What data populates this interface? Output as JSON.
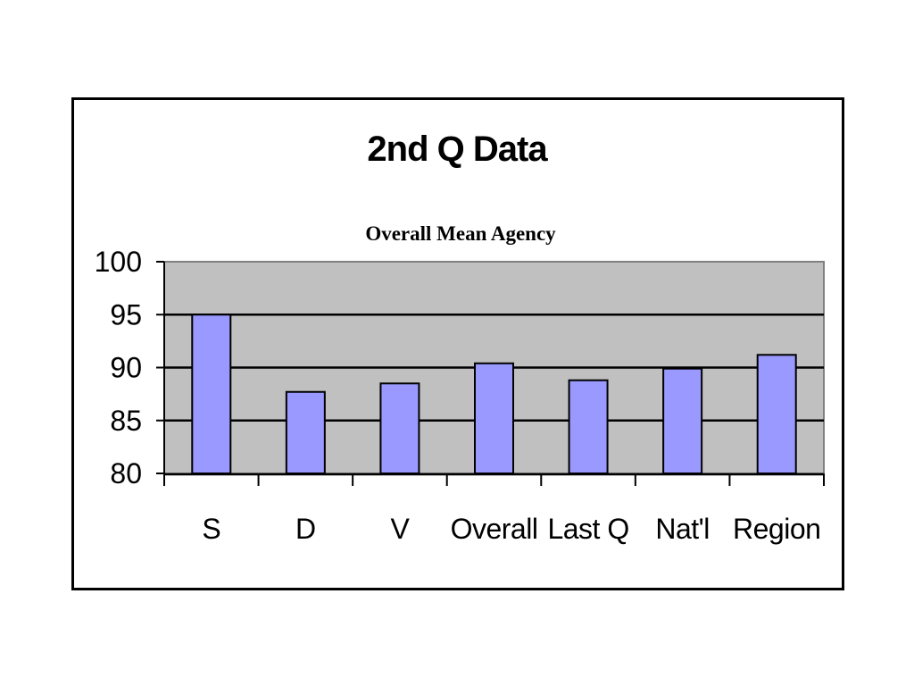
{
  "chart_data": {
    "type": "bar",
    "title": "2nd Q Data",
    "subtitle": "Overall Mean Agency",
    "xlabel": "",
    "ylabel": "",
    "categories": [
      "S",
      "D",
      "V",
      "Overall",
      "Last Q",
      "Nat'l",
      "Region"
    ],
    "values": [
      95,
      87.7,
      88.5,
      90.4,
      88.8,
      89.9,
      91.2
    ],
    "ylim": [
      80,
      100
    ],
    "yticks": [
      80,
      85,
      90,
      95,
      100
    ],
    "grid": true,
    "legend": "none",
    "colors": {
      "bar_fill": "#9999ff",
      "bar_stroke": "#000000",
      "plot_background": "#c0c0c0",
      "gridline": "#000000",
      "plot_border": "#808080"
    }
  }
}
